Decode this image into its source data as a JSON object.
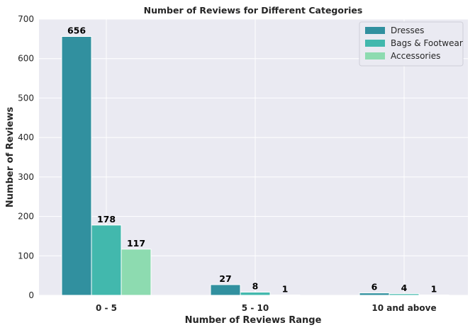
{
  "chart_data": {
    "type": "bar",
    "title": "Number of Reviews for Different Categories",
    "xlabel": "Number of Reviews Range",
    "ylabel": "Number of Reviews",
    "categories": [
      "0 - 5",
      "5 - 10",
      "10 and above"
    ],
    "series": [
      {
        "name": "Dresses",
        "values": [
          656,
          27,
          6
        ],
        "color": "#31909f"
      },
      {
        "name": "Bags & Footwear",
        "values": [
          178,
          8,
          4
        ],
        "color": "#42b8ad"
      },
      {
        "name": "Accessories",
        "values": [
          117,
          1,
          1
        ],
        "color": "#8ddbb0"
      }
    ],
    "ylim": [
      0,
      700
    ],
    "yticks": [
      0,
      100,
      200,
      300,
      400,
      500,
      600,
      700
    ],
    "grid": true,
    "legend_position": "top-right",
    "data_labels": true
  }
}
